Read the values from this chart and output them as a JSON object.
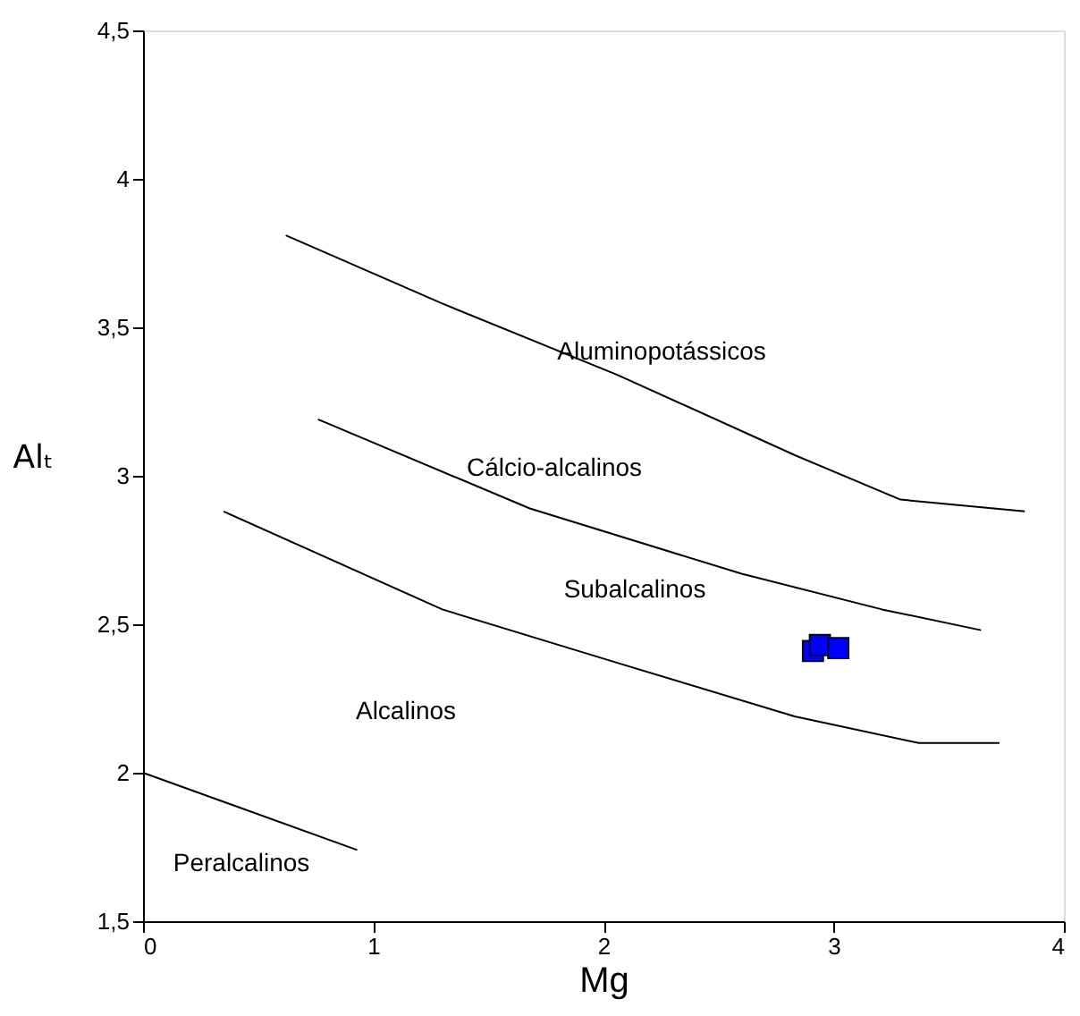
{
  "chart_data": {
    "type": "line",
    "xlabel": "Mg",
    "ylabel": "Alₜ",
    "xlim": [
      0,
      4
    ],
    "ylim": [
      1.5,
      4.5
    ],
    "xticks": [
      0,
      1,
      2,
      3,
      4
    ],
    "yticks": [
      {
        "value": 1.5,
        "label": "1,5"
      },
      2,
      {
        "value": 2.5,
        "label": "2,5"
      },
      3,
      {
        "value": 3.5,
        "label": "3,5"
      },
      4,
      {
        "value": 4.5,
        "label": "4,5"
      }
    ],
    "grid": false,
    "series": [
      {
        "color": "#000000",
        "line_style": "solid",
        "x": [
          0.62,
          1.3,
          2.06,
          2.83,
          3.29,
          3.83
        ],
        "values": [
          3.81,
          3.58,
          3.34,
          3.07,
          2.92,
          2.88
        ]
      },
      {
        "color": "#000000",
        "line_style": "solid",
        "x": [
          0.76,
          1.68,
          2.6,
          3.21,
          3.64
        ],
        "values": [
          3.19,
          2.89,
          2.67,
          2.55,
          2.48
        ]
      },
      {
        "color": "#000000",
        "line_style": "solid",
        "x": [
          0.35,
          1.3,
          2.06,
          2.83,
          3.37,
          3.72
        ],
        "values": [
          2.88,
          2.55,
          2.37,
          2.19,
          2.1,
          2.1
        ]
      },
      {
        "color": "#000000",
        "line_style": "solid",
        "x": [
          0,
          0.93
        ],
        "values": [
          2.0,
          1.74
        ]
      },
      {
        "type": "scatter",
        "color": "#0000ff",
        "marker": "square",
        "x": [
          2.91,
          2.94,
          3.02
        ],
        "values": [
          2.41,
          2.43,
          2.42
        ]
      }
    ],
    "annotations": [
      "Aluminopotássicos",
      "Cálcio-alcalinos",
      "Subalcalinos",
      "Alcalinos",
      "Peralcalinos"
    ]
  }
}
